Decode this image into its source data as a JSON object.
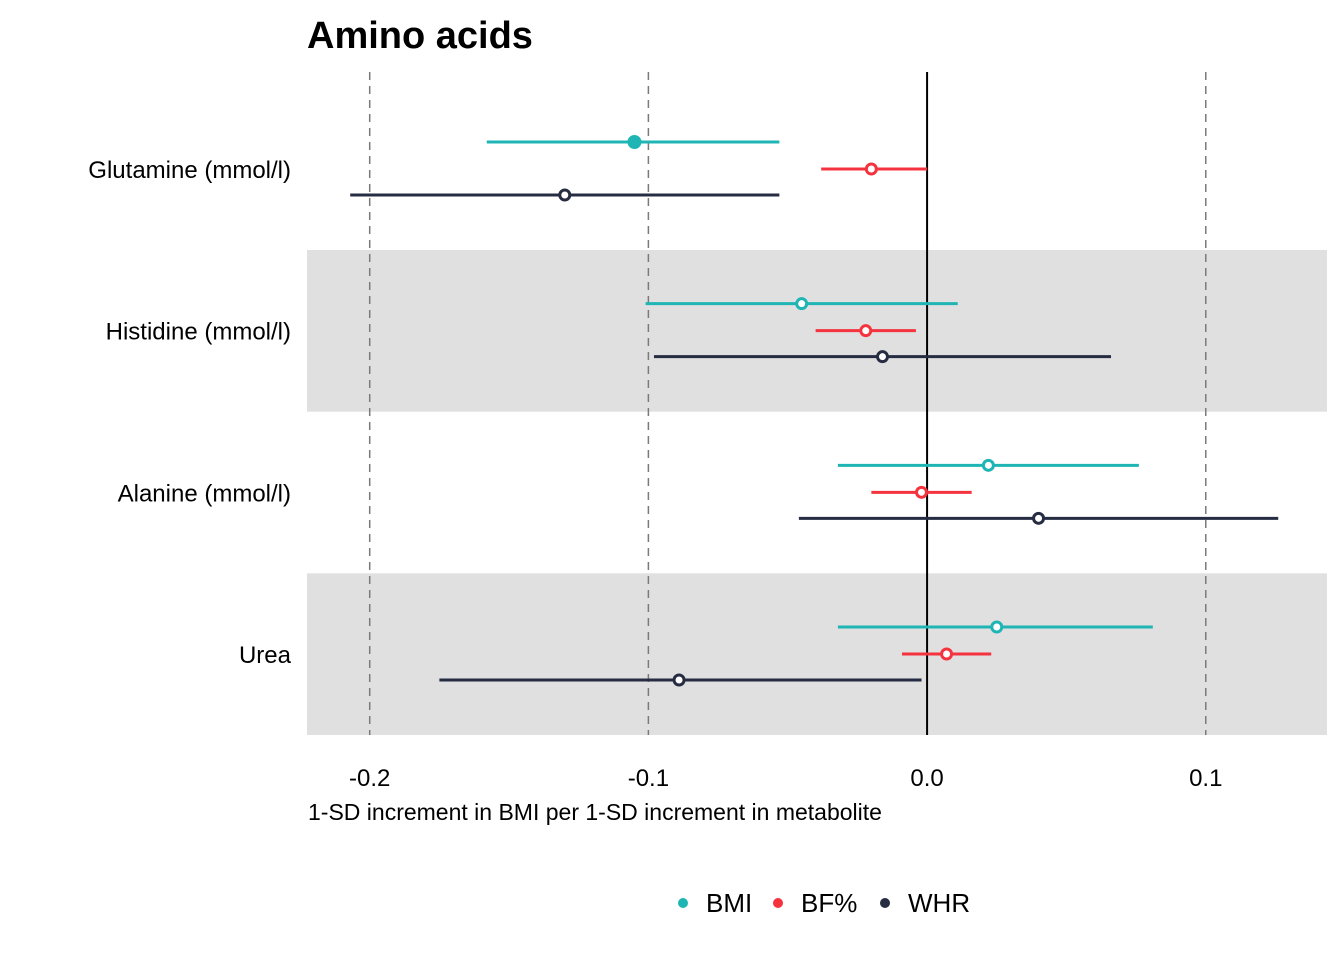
{
  "chart_data": {
    "type": "forest",
    "title": "Amino acids",
    "xlabel": "1-SD increment in BMI per 1-SD increment in metabolite",
    "ylabel": "",
    "xlim": [
      -0.2225,
      0.1435
    ],
    "xticks": [
      -0.2,
      -0.1,
      0.0,
      0.1
    ],
    "xtick_labels": [
      "-0.2",
      "-0.1",
      "0.0",
      "0.1"
    ],
    "reference_line": 0.0,
    "grid": "dashed vertical at ticks",
    "alternating_band_color": "#e0e0e0",
    "legend_position": "bottom",
    "categories": [
      "Glutamine (mmol/l)",
      "Histidine (mmol/l)",
      "Alanine (mmol/l)",
      "Urea"
    ],
    "series": [
      {
        "name": "BMI",
        "color": "#1fb5b5",
        "estimates": [
          -0.105,
          -0.045,
          0.022,
          0.025
        ],
        "lower": [
          -0.158,
          -0.101,
          -0.032,
          -0.032
        ],
        "upper": [
          -0.053,
          0.011,
          0.076,
          0.081
        ],
        "filled": [
          true,
          false,
          false,
          false
        ]
      },
      {
        "name": "BF%",
        "color": "#f5333f",
        "estimates": [
          -0.02,
          -0.022,
          -0.002,
          0.007
        ],
        "lower": [
          -0.038,
          -0.04,
          -0.02,
          -0.009
        ],
        "upper": [
          0.0,
          -0.004,
          0.016,
          0.023
        ],
        "filled": [
          false,
          false,
          false,
          false
        ]
      },
      {
        "name": "WHR",
        "color": "#262d42",
        "estimates": [
          -0.13,
          -0.016,
          0.04,
          -0.089
        ],
        "lower": [
          -0.207,
          -0.098,
          -0.046,
          -0.175
        ],
        "upper": [
          -0.053,
          0.066,
          0.126,
          -0.002
        ],
        "filled": [
          false,
          false,
          false,
          false
        ]
      }
    ]
  }
}
